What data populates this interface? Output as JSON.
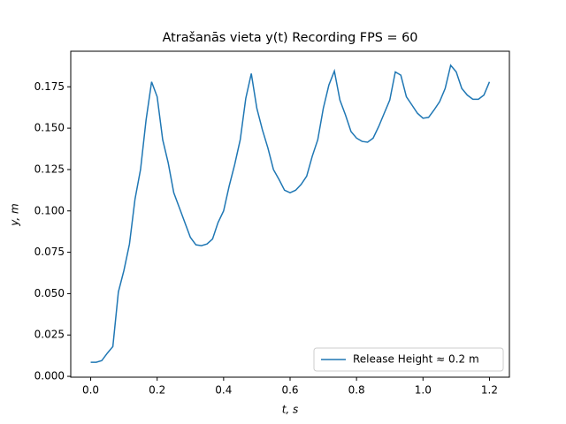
{
  "chart_data": {
    "type": "line",
    "title": "Atrašanās vieta y(t) Recording FPS = 60",
    "x_label": "t, s",
    "y_label": "y, m",
    "x": [
      0,
      0.0167,
      0.0333,
      0.05,
      0.0667,
      0.0833,
      0.1,
      0.1167,
      0.1333,
      0.15,
      0.1667,
      0.1833,
      0.2,
      0.2167,
      0.2333,
      0.25,
      0.2667,
      0.2833,
      0.3,
      0.3167,
      0.3333,
      0.35,
      0.3667,
      0.3833,
      0.4,
      0.4167,
      0.4333,
      0.45,
      0.4667,
      0.4833,
      0.5,
      0.5167,
      0.5333,
      0.55,
      0.5667,
      0.5833,
      0.6,
      0.6167,
      0.6333,
      0.65,
      0.6667,
      0.6833,
      0.7,
      0.7167,
      0.7333,
      0.75,
      0.7667,
      0.7833,
      0.8,
      0.8167,
      0.8333,
      0.85,
      0.8667,
      0.8833,
      0.9,
      0.9167,
      0.9333,
      0.95,
      0.9667,
      0.9833,
      1.0,
      1.0167,
      1.0333,
      1.05,
      1.0667,
      1.0833,
      1.1,
      1.1167,
      1.1333,
      1.15,
      1.1667,
      1.1833,
      1.2
    ],
    "series": [
      {
        "name": "Release Height ≈ 0.2 m",
        "color": "#1f77b4",
        "values": [
          0.0085,
          0.0085,
          0.0095,
          0.014,
          0.018,
          0.051,
          0.064,
          0.08,
          0.107,
          0.125,
          0.155,
          0.178,
          0.169,
          0.143,
          0.129,
          0.111,
          0.102,
          0.093,
          0.084,
          0.0795,
          0.079,
          0.08,
          0.083,
          0.093,
          0.1,
          0.115,
          0.128,
          0.143,
          0.168,
          0.183,
          0.162,
          0.149,
          0.138,
          0.125,
          0.119,
          0.1125,
          0.111,
          0.1125,
          0.116,
          0.121,
          0.133,
          0.143,
          0.162,
          0.176,
          0.1845,
          0.167,
          0.158,
          0.148,
          0.144,
          0.142,
          0.1415,
          0.144,
          0.151,
          0.159,
          0.167,
          0.184,
          0.182,
          0.169,
          0.164,
          0.159,
          0.156,
          0.1565,
          0.161,
          0.166,
          0.174,
          0.188,
          0.184,
          0.174,
          0.17,
          0.1675,
          0.1675,
          0.17,
          0.178
        ]
      }
    ],
    "xlim": [
      -0.06,
      1.26
    ],
    "ylim": [
      -0.0005,
      0.1965
    ],
    "xticks": [
      {
        "value": 0,
        "label": "0.0"
      },
      {
        "value": 0.2,
        "label": "0.2"
      },
      {
        "value": 0.4,
        "label": "0.4"
      },
      {
        "value": 0.6,
        "label": "0.6"
      },
      {
        "value": 0.8,
        "label": "0.8"
      },
      {
        "value": 1,
        "label": "1.0"
      },
      {
        "value": 1.2,
        "label": "1.2"
      }
    ],
    "yticks": [
      {
        "value": 0,
        "label": "0.000"
      },
      {
        "value": 0.025,
        "label": "0.025"
      },
      {
        "value": 0.05,
        "label": "0.050"
      },
      {
        "value": 0.075,
        "label": "0.075"
      },
      {
        "value": 0.1,
        "label": "0.100"
      },
      {
        "value": 0.125,
        "label": "0.125"
      },
      {
        "value": 0.15,
        "label": "0.150"
      },
      {
        "value": 0.175,
        "label": "0.175"
      }
    ],
    "legend": "lower right"
  }
}
